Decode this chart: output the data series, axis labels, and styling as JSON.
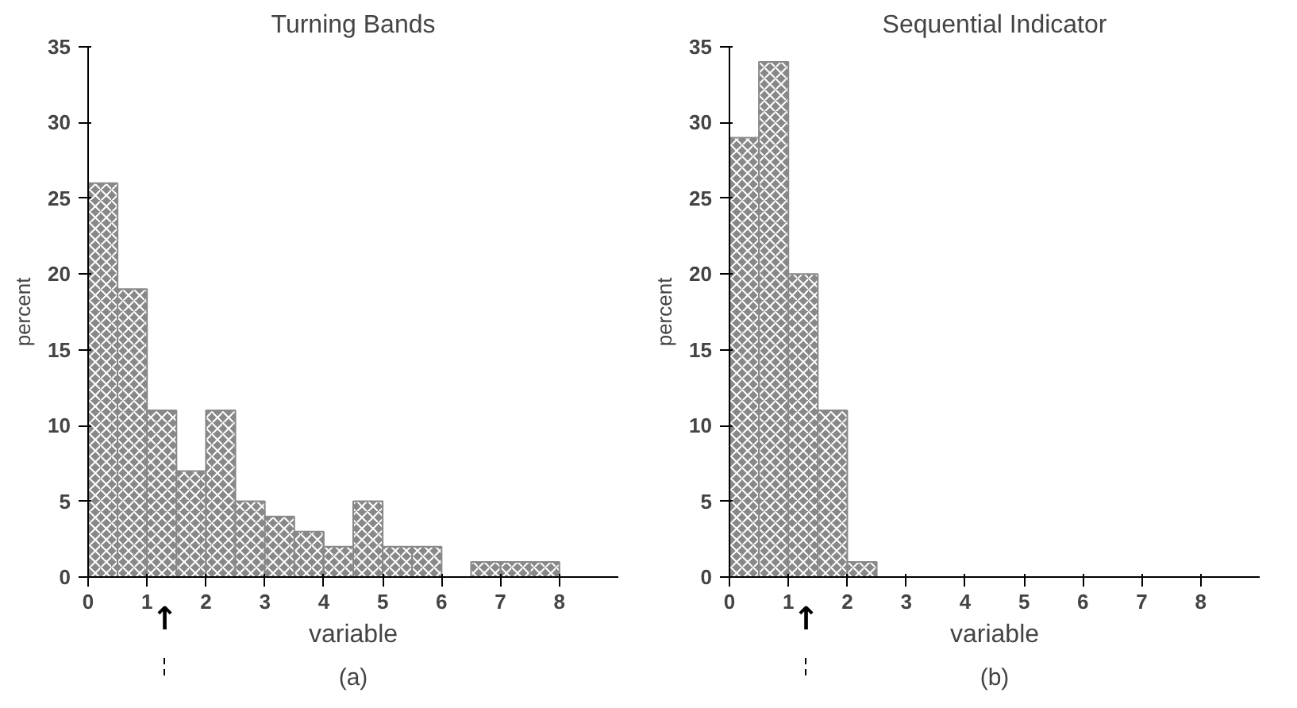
{
  "chart_data": [
    {
      "type": "histogram",
      "title": "Turning Bands",
      "xlabel": "variable",
      "ylabel": "percent",
      "color": "#888888",
      "bins": [
        0,
        0.5,
        1,
        1.5,
        2,
        2.5,
        3,
        3.5,
        4,
        4.5,
        5,
        5.5,
        6,
        6.5,
        7,
        7.5,
        8
      ],
      "values": [
        26,
        19,
        11,
        7,
        11,
        5,
        4,
        3,
        2,
        5,
        2,
        2,
        0,
        1,
        1,
        1
      ],
      "xlim": [
        0,
        9
      ],
      "xticks": [
        0,
        1,
        2,
        3,
        4,
        5,
        6,
        7,
        8
      ],
      "ylim": [
        0,
        35
      ],
      "yticks": [
        0,
        5,
        10,
        15,
        20,
        25,
        30,
        35
      ],
      "grid": false,
      "ref_lines": [
        {
          "axis": "x",
          "value": 1.3,
          "label": "↑",
          "line_style": "dashed"
        }
      ],
      "annotations": [
        "(a)"
      ]
    },
    {
      "type": "histogram",
      "title": "Sequential Indicator",
      "xlabel": "variable",
      "ylabel": "percent",
      "color": "#888888",
      "bins": [
        0,
        0.5,
        1,
        1.5,
        2,
        2.5
      ],
      "values": [
        29,
        34,
        20,
        11,
        1
      ],
      "xlim": [
        0,
        9
      ],
      "xticks": [
        0,
        1,
        2,
        3,
        4,
        5,
        6,
        7,
        8
      ],
      "ylim": [
        0,
        35
      ],
      "yticks": [
        0,
        5,
        10,
        15,
        20,
        25,
        30,
        35
      ],
      "grid": false,
      "ref_lines": [
        {
          "axis": "x",
          "value": 1.3,
          "label": "↑",
          "line_style": "dashed"
        }
      ],
      "annotations": [
        "(b)"
      ]
    }
  ]
}
